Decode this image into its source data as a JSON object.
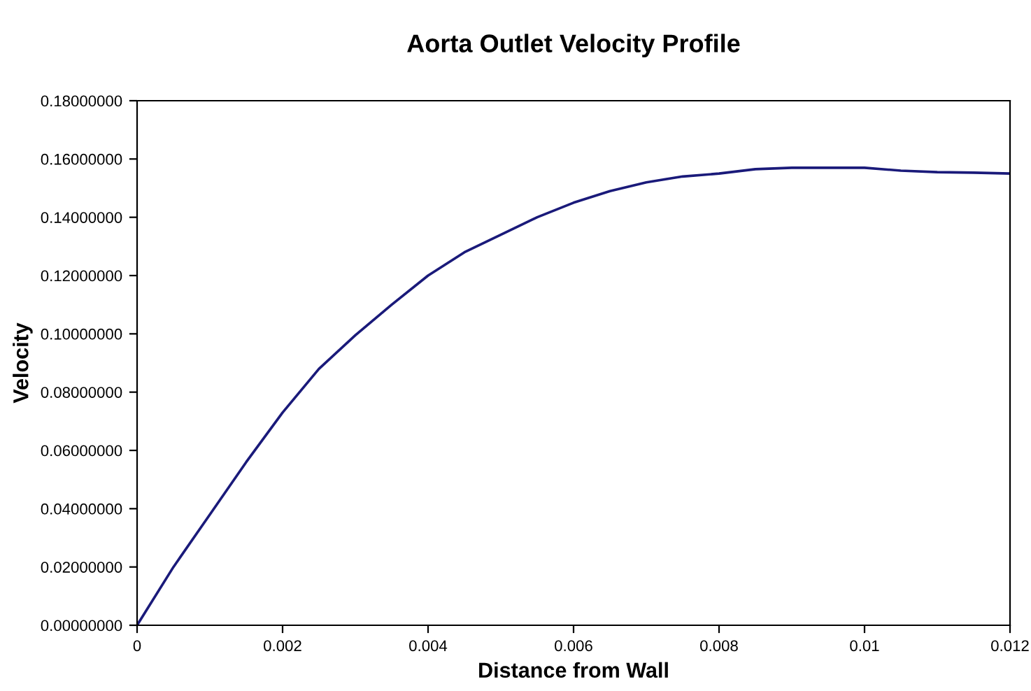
{
  "chart_data": {
    "type": "line",
    "title": "Aorta Outlet Velocity Profile",
    "xlabel": "Distance from Wall",
    "ylabel": "Velocity",
    "x": [
      0,
      0.0005,
      0.001,
      0.0015,
      0.002,
      0.0025,
      0.003,
      0.0035,
      0.004,
      0.0045,
      0.005,
      0.0055,
      0.006,
      0.0065,
      0.007,
      0.0075,
      0.008,
      0.0085,
      0.009,
      0.0095,
      0.01,
      0.0105,
      0.011,
      0.0115,
      0.012
    ],
    "series": [
      {
        "color": "#1a1a7a",
        "values": [
          0,
          0.02,
          0.038,
          0.056,
          0.073,
          0.088,
          0.0995,
          0.11,
          0.12,
          0.128,
          0.134,
          0.14,
          0.145,
          0.149,
          0.152,
          0.154,
          0.155,
          0.1565,
          0.157,
          0.157,
          0.157,
          0.156,
          0.1555,
          0.1553,
          0.155
        ]
      }
    ],
    "xlim": [
      0,
      0.012
    ],
    "xticks": [
      0,
      0.002,
      0.004,
      0.006,
      0.008,
      0.01,
      0.012
    ],
    "ylim": [
      0,
      0.18
    ],
    "yticks": [
      {
        "value": 0,
        "label": "0.00000000"
      },
      {
        "value": 0.02,
        "label": "0.02000000"
      },
      {
        "value": 0.04,
        "label": "0.04000000"
      },
      {
        "value": 0.06,
        "label": "0.06000000"
      },
      {
        "value": 0.08,
        "label": "0.08000000"
      },
      {
        "value": 0.1,
        "label": "0.10000000"
      },
      {
        "value": 0.12,
        "label": "0.12000000"
      },
      {
        "value": 0.14,
        "label": "0.14000000"
      },
      {
        "value": 0.16,
        "label": "0.16000000"
      },
      {
        "value": 0.18,
        "label": "0.18000000"
      }
    ],
    "grid": false,
    "marker": "none",
    "line_style": "solid"
  }
}
